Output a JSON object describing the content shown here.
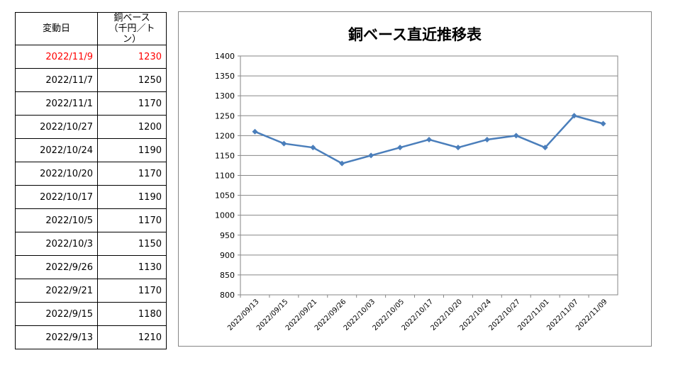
{
  "table": {
    "header_date": "変動日",
    "header_price_line1": "銅ベース",
    "header_price_line2": "（千円／トン）",
    "rows": [
      {
        "date": "2022/11/9",
        "price": "1230",
        "highlight": true
      },
      {
        "date": "2022/11/7",
        "price": "1250"
      },
      {
        "date": "2022/11/1",
        "price": "1170"
      },
      {
        "date": "2022/10/27",
        "price": "1200"
      },
      {
        "date": "2022/10/24",
        "price": "1190"
      },
      {
        "date": "2022/10/20",
        "price": "1170"
      },
      {
        "date": "2022/10/17",
        "price": "1190"
      },
      {
        "date": "2022/10/5",
        "price": "1170"
      },
      {
        "date": "2022/10/3",
        "price": "1150"
      },
      {
        "date": "2022/9/26",
        "price": "1130"
      },
      {
        "date": "2022/9/21",
        "price": "1170"
      },
      {
        "date": "2022/9/15",
        "price": "1180"
      },
      {
        "date": "2022/9/13",
        "price": "1210"
      }
    ],
    "highlight_color": "#ff0000"
  },
  "chart_data": {
    "type": "line",
    "title": "銅ベース直近推移表",
    "xlabel": "",
    "ylabel": "",
    "categories": [
      "2022/09/13",
      "2022/09/15",
      "2022/09/21",
      "2022/09/26",
      "2022/10/03",
      "2022/10/05",
      "2022/10/17",
      "2022/10/20",
      "2022/10/24",
      "2022/10/27",
      "2022/11/01",
      "2022/11/07",
      "2022/11/09"
    ],
    "series": [
      {
        "values": [
          1210,
          1180,
          1170,
          1130,
          1150,
          1170,
          1190,
          1170,
          1190,
          1200,
          1170,
          1250,
          1230
        ],
        "color": "#4a7ebb"
      }
    ],
    "ylim": [
      800,
      1400
    ],
    "yticks": [
      800,
      850,
      900,
      950,
      1000,
      1050,
      1100,
      1150,
      1200,
      1250,
      1300,
      1350,
      1400
    ],
    "grid": true,
    "legend": "none",
    "marker": "diamond"
  }
}
